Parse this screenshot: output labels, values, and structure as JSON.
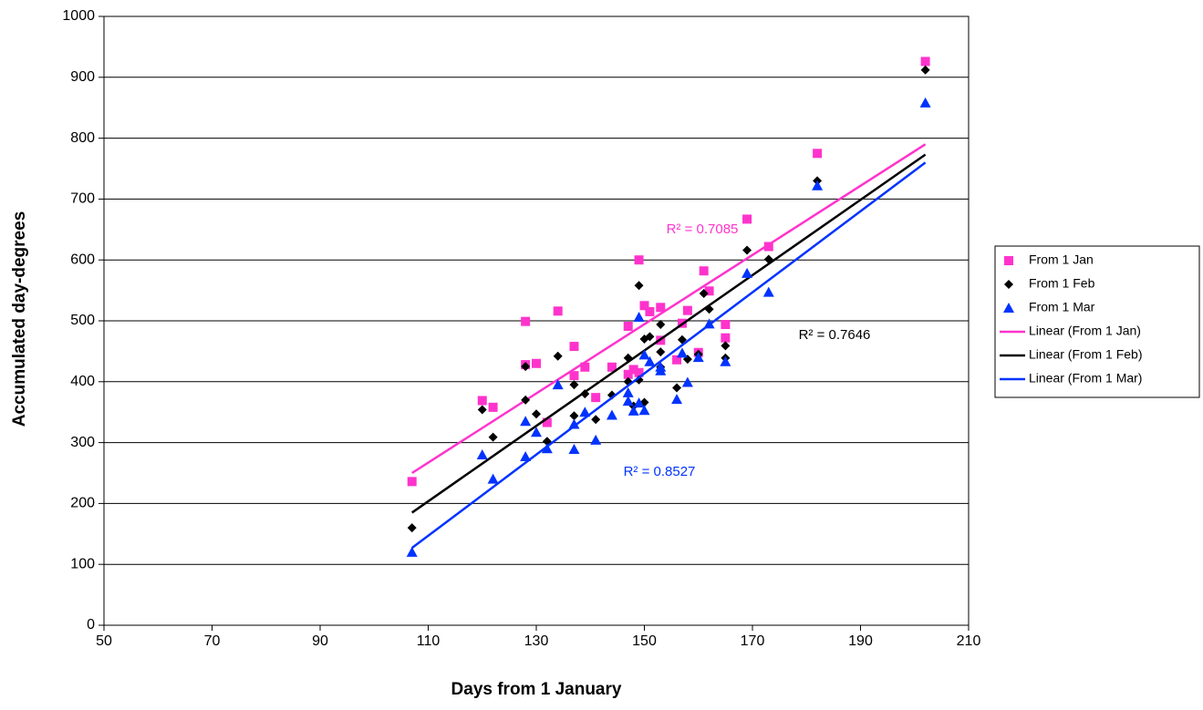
{
  "chart_data": {
    "type": "scatter",
    "xlabel": "Days from 1 January",
    "ylabel": "Accumulated day-degrees",
    "xlim": [
      50,
      210
    ],
    "xticks": [
      50,
      70,
      90,
      110,
      130,
      150,
      170,
      190,
      210
    ],
    "ylim": [
      0,
      1000
    ],
    "yticks": [
      0,
      100,
      200,
      300,
      400,
      500,
      600,
      700,
      800,
      900,
      1000
    ],
    "grid": true,
    "legend": "right",
    "series": [
      {
        "name": "From 1 Jan",
        "color": "#ff33cc",
        "marker": "square",
        "x": [
          107,
          120,
          122,
          128,
          128,
          130,
          132,
          134,
          137,
          137,
          139,
          141,
          144,
          147,
          147,
          148,
          149,
          149,
          150,
          151,
          153,
          153,
          156,
          157,
          158,
          160,
          161,
          162,
          165,
          165,
          169,
          173,
          182,
          202
        ],
        "values": [
          236,
          369,
          358,
          499,
          428,
          430,
          333,
          516,
          458,
          410,
          424,
          374,
          424,
          491,
          412,
          420,
          600,
          415,
          525,
          515,
          522,
          468,
          436,
          496,
          517,
          448,
          582,
          549,
          494,
          472,
          667,
          622,
          775,
          926
        ],
        "trendline": {
          "name": "Linear (From 1 Jan)",
          "x": [
            107,
            202
          ],
          "values": [
            250,
            790
          ],
          "r2_label": "R² = 0.7085"
        }
      },
      {
        "name": "From 1 Feb",
        "color": "#000000",
        "marker": "diamond",
        "x": [
          107,
          120,
          122,
          128,
          128,
          130,
          132,
          134,
          137,
          137,
          139,
          141,
          144,
          147,
          147,
          148,
          149,
          149,
          150,
          150,
          151,
          153,
          153,
          153,
          156,
          157,
          158,
          160,
          161,
          162,
          165,
          165,
          169,
          173,
          182,
          202
        ],
        "values": [
          160,
          354,
          309,
          425,
          370,
          347,
          302,
          442,
          395,
          344,
          380,
          338,
          378,
          439,
          400,
          360,
          558,
          403,
          470,
          366,
          474,
          494,
          449,
          424,
          390,
          469,
          437,
          445,
          545,
          519,
          459,
          439,
          616,
          601,
          730,
          912
        ],
        "trendline": {
          "name": "Linear (From 1 Feb)",
          "x": [
            107,
            202
          ],
          "values": [
            185,
            773
          ],
          "r2_label": "R² = 0.7646"
        }
      },
      {
        "name": "From 1 Mar",
        "color": "#0033ff",
        "marker": "triangle",
        "x": [
          107,
          120,
          122,
          128,
          128,
          130,
          132,
          134,
          137,
          137,
          139,
          141,
          144,
          147,
          147,
          148,
          149,
          149,
          150,
          150,
          151,
          153,
          153,
          156,
          157,
          158,
          160,
          162,
          165,
          169,
          173,
          182,
          202
        ],
        "values": [
          120,
          280,
          240,
          335,
          277,
          317,
          290,
          395,
          330,
          289,
          350,
          304,
          345,
          382,
          368,
          352,
          506,
          365,
          444,
          353,
          433,
          418,
          424,
          371,
          447,
          399,
          440,
          495,
          433,
          578,
          547,
          722,
          858
        ],
        "trendline": {
          "name": "Linear (From 1 Mar)",
          "x": [
            107,
            202
          ],
          "values": [
            127,
            760
          ],
          "r2_label": "R² = 0.8527"
        }
      }
    ]
  }
}
